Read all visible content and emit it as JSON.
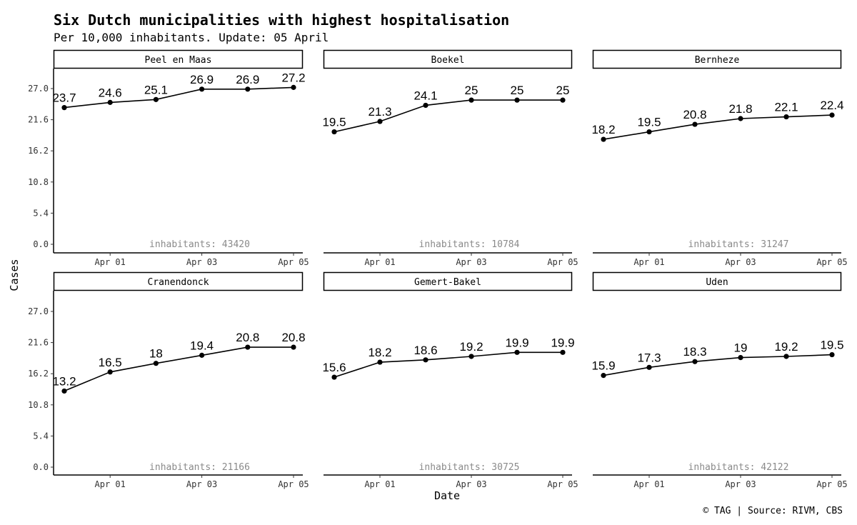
{
  "title": "Six Dutch municipalities with highest hospitalisation",
  "subtitle": "Per 10,000 inhabitants. Update: 05 April",
  "caption": "© TAG | Source: RIVM, CBS",
  "chart_data": {
    "type": "line",
    "facet": "small-multiples",
    "xlabel": "Date",
    "ylabel": "Cases",
    "x": [
      "2020-03-31",
      "2020-04-01",
      "2020-04-02",
      "2020-04-03",
      "2020-04-04",
      "2020-04-05"
    ],
    "x_ticks": [
      {
        "x": "2020-04-01",
        "label": "Apr 01"
      },
      {
        "x": "2020-04-03",
        "label": "Apr 03"
      },
      {
        "x": "2020-04-05",
        "label": "Apr 05"
      }
    ],
    "y_ticks": [
      "0.0",
      "5.4",
      "10.8",
      "16.2",
      "21.6",
      "27.0"
    ],
    "ylim": [
      0,
      27
    ],
    "grid": false,
    "panels": [
      {
        "name": "Peel en Maas",
        "inhabitants_label": "inhabitants: 43420",
        "values": [
          23.7,
          24.6,
          25.1,
          26.9,
          26.9,
          27.2
        ],
        "labels": [
          "23.7",
          "24.6",
          "25.1",
          "26.9",
          "26.9",
          "27.2"
        ]
      },
      {
        "name": "Boekel",
        "inhabitants_label": "inhabitants: 10784",
        "values": [
          19.5,
          21.3,
          24.1,
          25,
          25,
          25
        ],
        "labels": [
          "19.5",
          "21.3",
          "24.1",
          "25",
          "25",
          "25"
        ]
      },
      {
        "name": "Bernheze",
        "inhabitants_label": "inhabitants: 31247",
        "values": [
          18.2,
          19.5,
          20.8,
          21.8,
          22.1,
          22.4
        ],
        "labels": [
          "18.2",
          "19.5",
          "20.8",
          "21.8",
          "22.1",
          "22.4"
        ]
      },
      {
        "name": "Cranendonck",
        "inhabitants_label": "inhabitants: 21166",
        "values": [
          13.2,
          16.5,
          18,
          19.4,
          20.8,
          20.8
        ],
        "labels": [
          "13.2",
          "16.5",
          "18",
          "19.4",
          "20.8",
          "20.8"
        ]
      },
      {
        "name": "Gemert-Bakel",
        "inhabitants_label": "inhabitants: 30725",
        "values": [
          15.6,
          18.2,
          18.6,
          19.2,
          19.9,
          19.9
        ],
        "labels": [
          "15.6",
          "18.2",
          "18.6",
          "19.2",
          "19.9",
          "19.9"
        ]
      },
      {
        "name": "Uden",
        "inhabitants_label": "inhabitants: 42122",
        "values": [
          15.9,
          17.3,
          18.3,
          19,
          19.2,
          19.5
        ],
        "labels": [
          "15.9",
          "17.3",
          "18.3",
          "19",
          "19.2",
          "19.5"
        ]
      }
    ]
  }
}
